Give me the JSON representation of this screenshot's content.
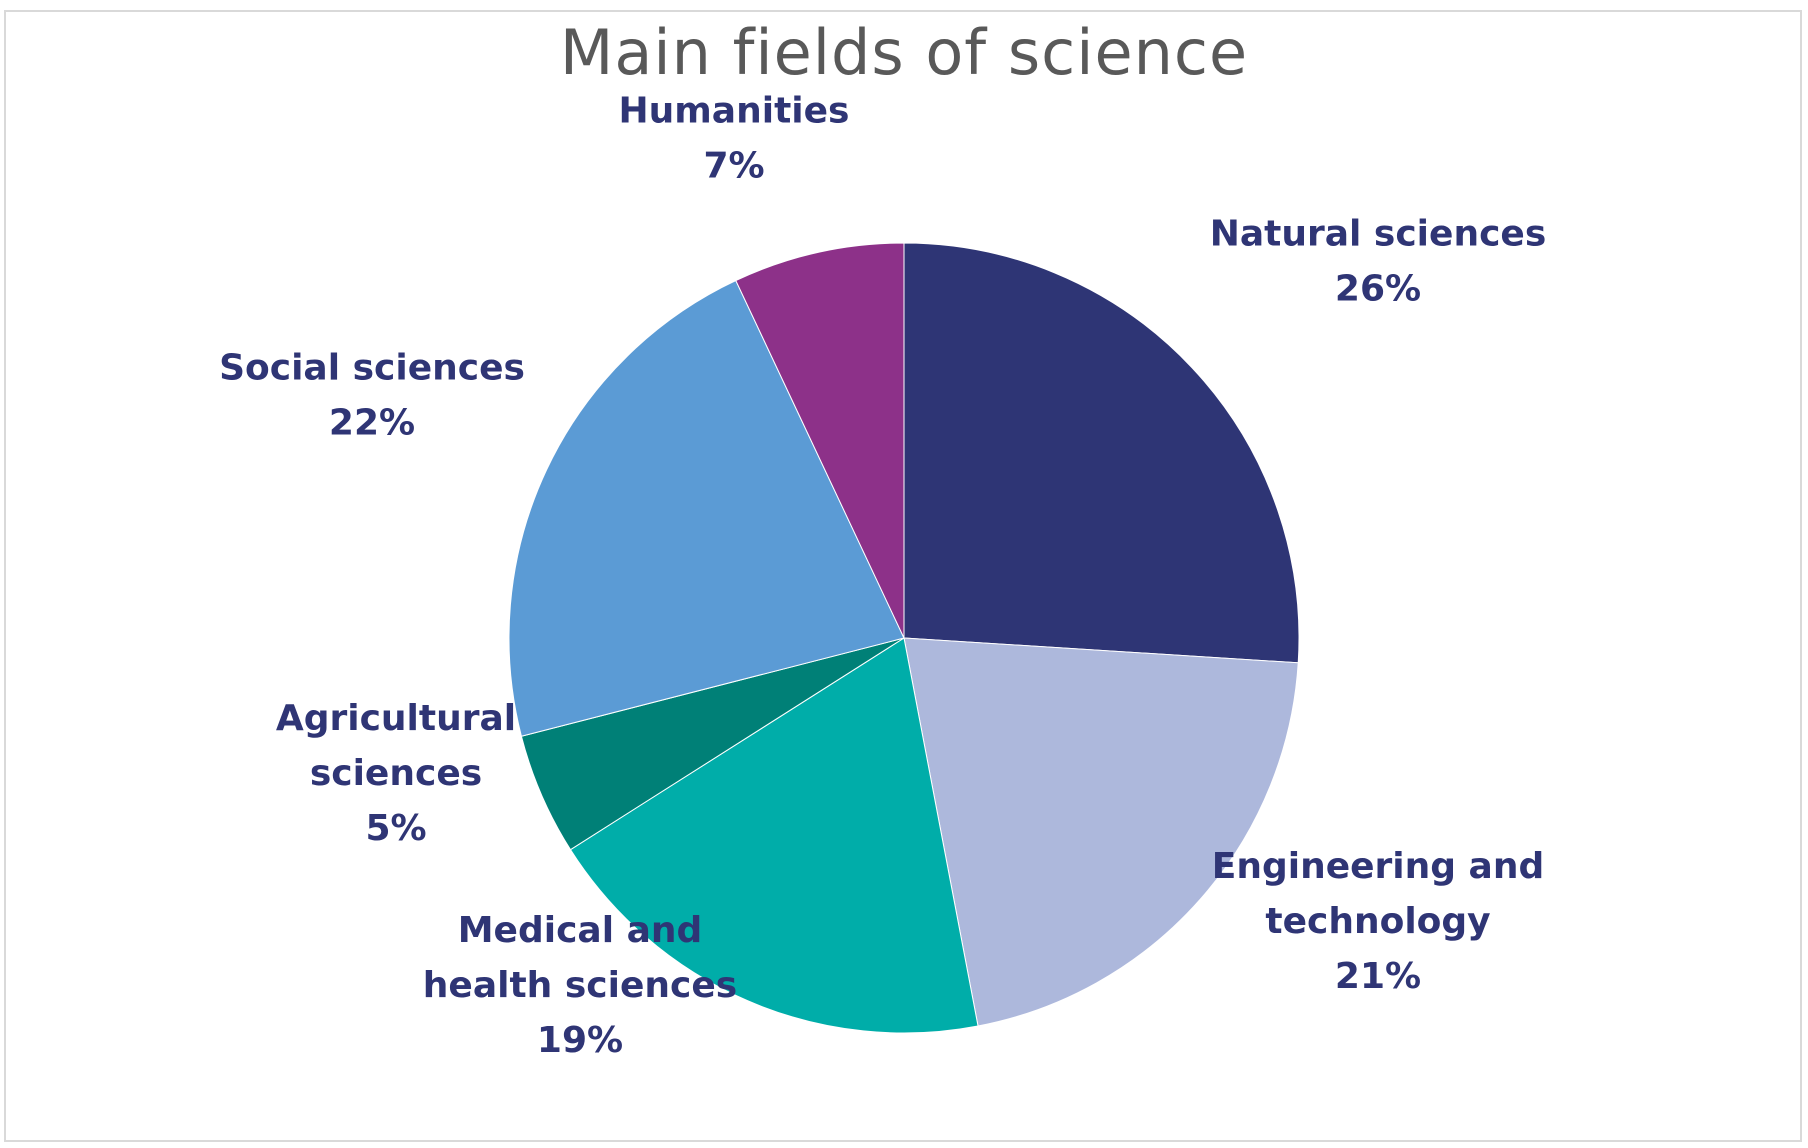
{
  "chart_data": {
    "type": "pie",
    "title": "Main fields of science",
    "slices": [
      {
        "key": "natural",
        "label_lines": [
          "Natural sciences"
        ],
        "value": 26,
        "value_label": "26%",
        "color": "#2e3575"
      },
      {
        "key": "engineering",
        "label_lines": [
          "Engineering and",
          "technology"
        ],
        "value": 21,
        "value_label": "21%",
        "color": "#adb8dc"
      },
      {
        "key": "medical",
        "label_lines": [
          "Medical and",
          "health sciences"
        ],
        "value": 19,
        "value_label": "19%",
        "color": "#00ada9"
      },
      {
        "key": "agricultural",
        "label_lines": [
          "Agricultural",
          "sciences"
        ],
        "value": 5,
        "value_label": "5%",
        "color": "#008077"
      },
      {
        "key": "social",
        "label_lines": [
          "Social sciences"
        ],
        "value": 22,
        "value_label": "22%",
        "color": "#5b9bd5"
      },
      {
        "key": "humanities",
        "label_lines": [
          "Humanities"
        ],
        "value": 7,
        "value_label": "7%",
        "color": "#8d3189"
      }
    ],
    "start_angle": "12 o'clock",
    "direction": "clockwise",
    "legend": "none",
    "data_labels": "outside"
  }
}
